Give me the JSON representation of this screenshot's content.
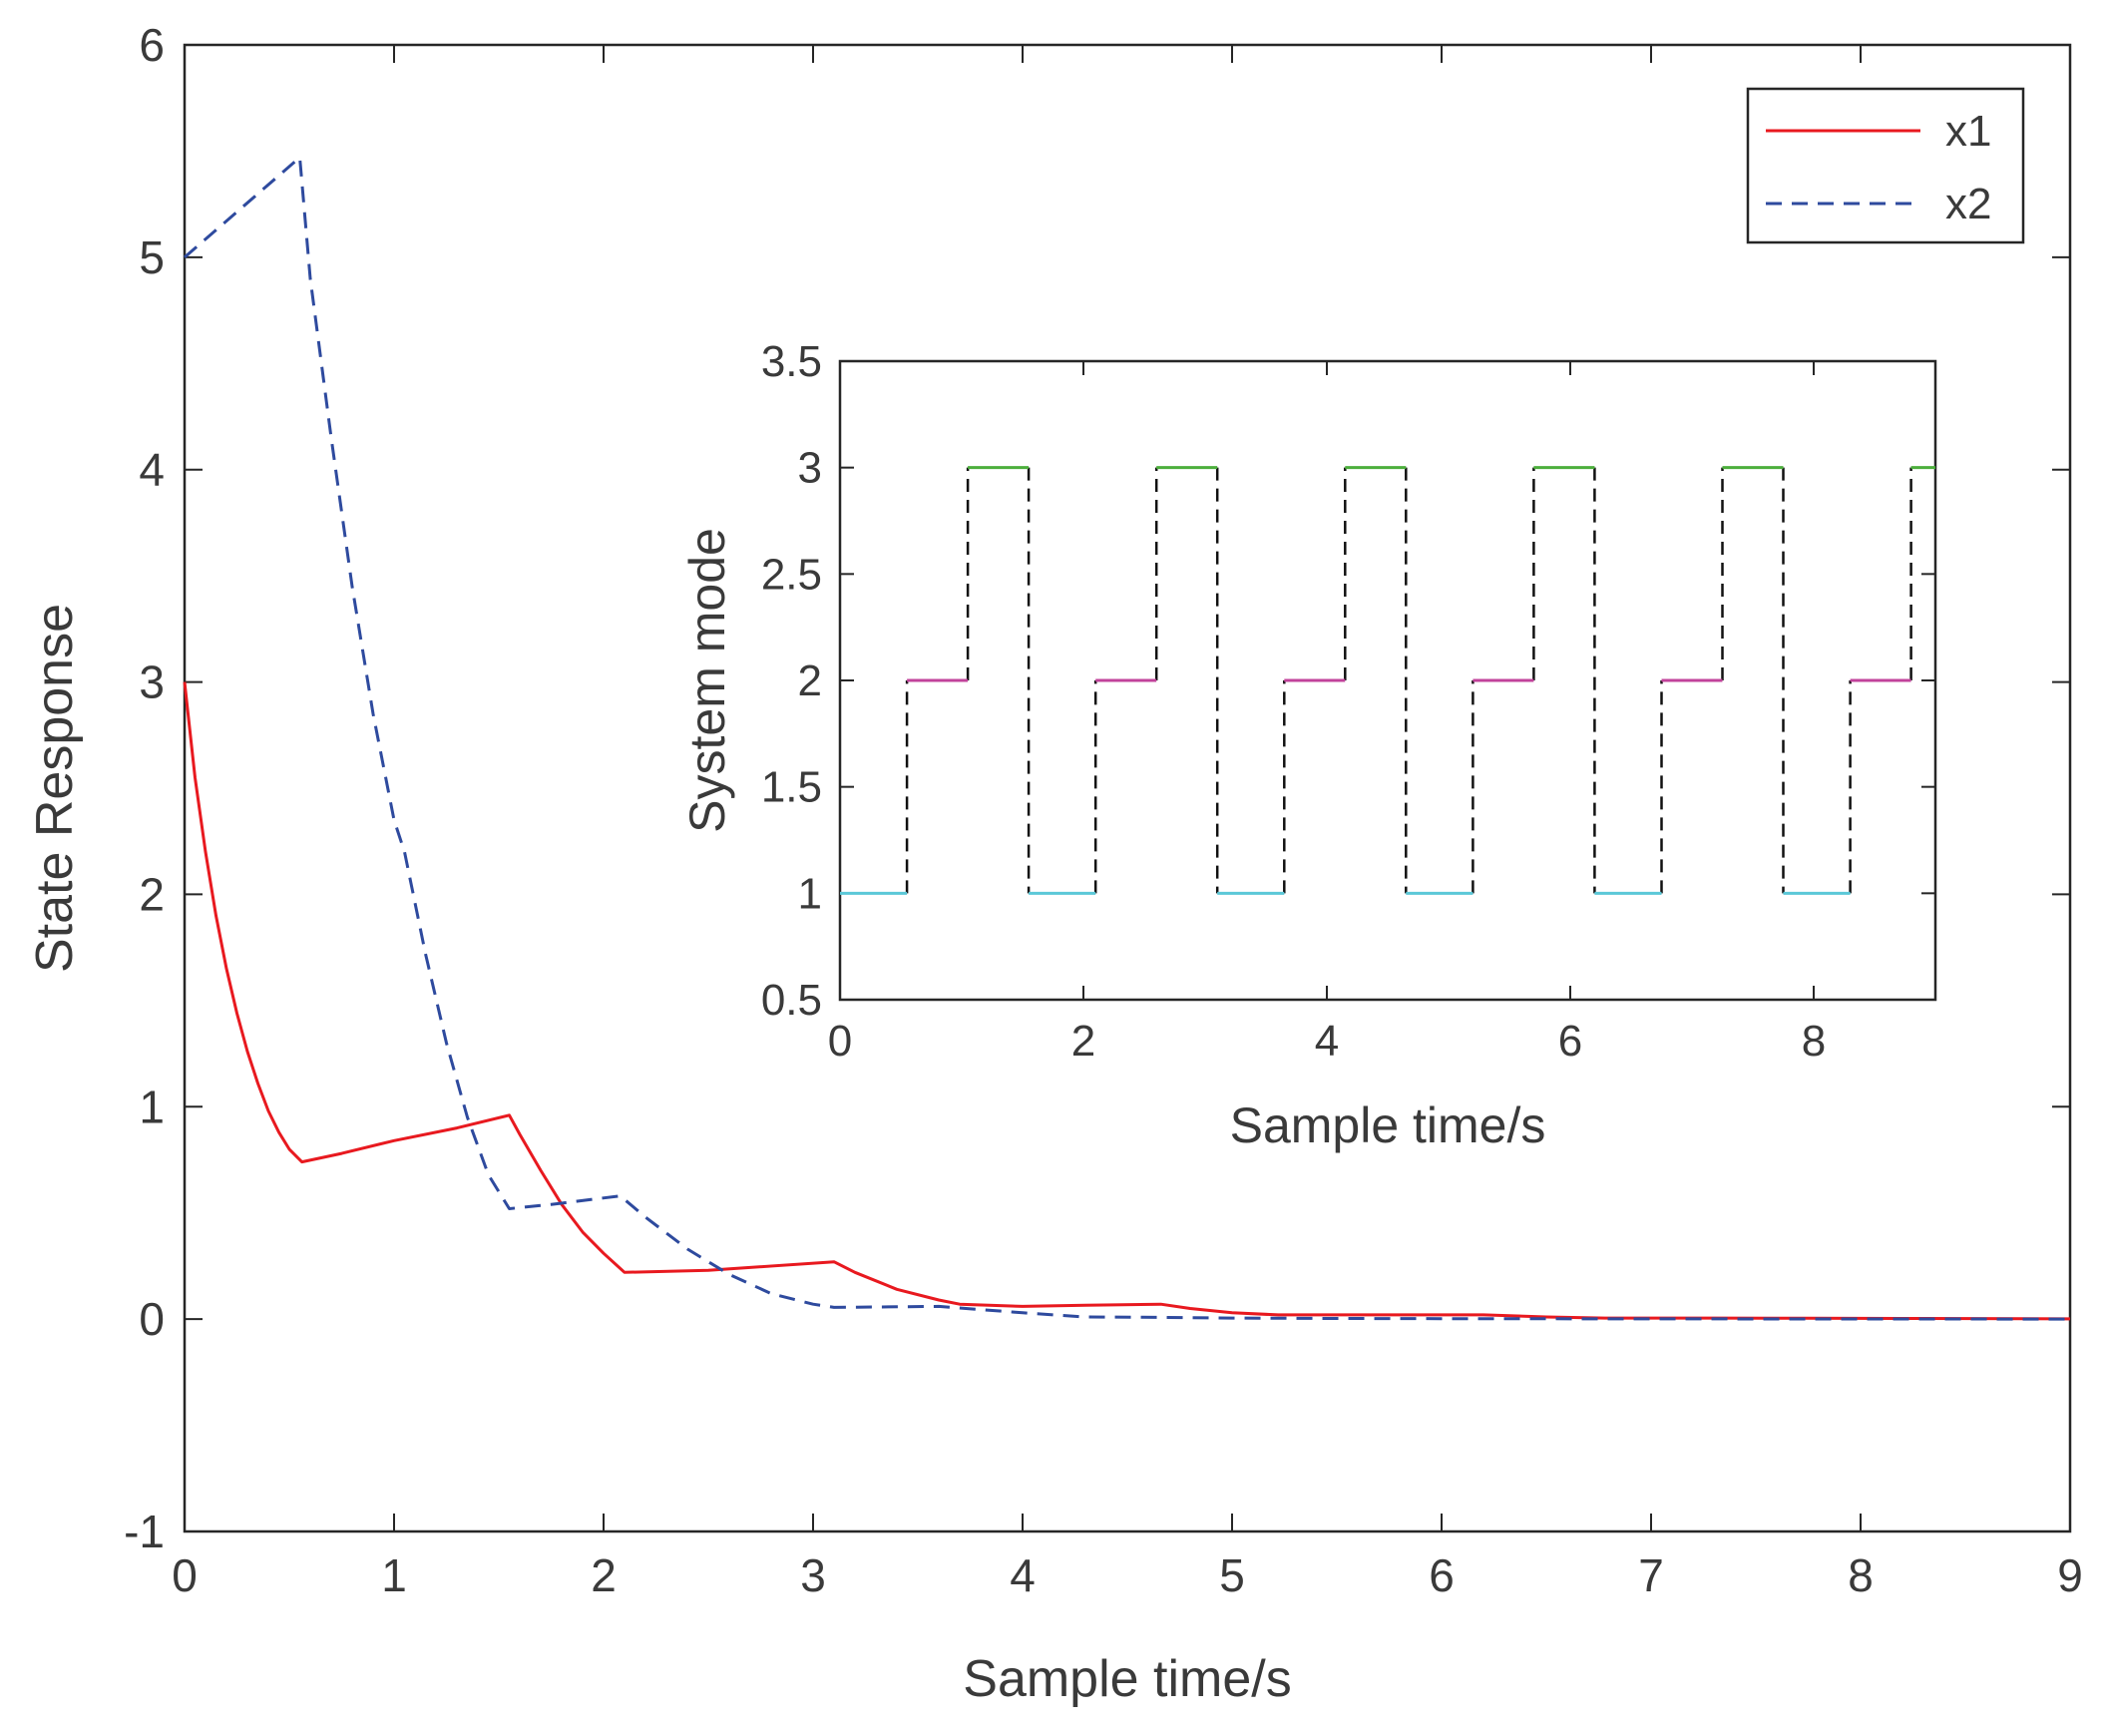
{
  "chart_data": [
    {
      "id": "main",
      "type": "line",
      "title": "",
      "xlabel": "Sample time/s",
      "ylabel": "State Response",
      "xlim": [
        0,
        9
      ],
      "ylim": [
        -1,
        6
      ],
      "xticks": [
        0,
        1,
        2,
        3,
        4,
        5,
        6,
        7,
        8,
        9
      ],
      "yticks": [
        -1,
        0,
        1,
        2,
        3,
        4,
        5,
        6
      ],
      "xtick_labels": [
        "0",
        "1",
        "2",
        "3",
        "4",
        "5",
        "6",
        "7",
        "8",
        "9"
      ],
      "ytick_labels": [
        "-1",
        "0",
        "1",
        "2",
        "3",
        "4",
        "5",
        "6"
      ],
      "grid": false,
      "legend_position": "top-right",
      "series": [
        {
          "name": "x1",
          "color": "#e8191f",
          "style": "solid",
          "x": [
            0,
            0.05,
            0.1,
            0.15,
            0.2,
            0.25,
            0.3,
            0.35,
            0.4,
            0.45,
            0.5,
            0.56,
            0.75,
            1.0,
            1.3,
            1.55,
            1.6,
            1.7,
            1.8,
            1.9,
            2.0,
            2.1,
            2.5,
            3.1,
            3.2,
            3.4,
            3.6,
            3.7,
            4.0,
            4.3,
            4.66,
            4.8,
            5.0,
            5.22,
            5.6,
            6.0,
            6.2,
            6.5,
            6.78,
            7.3,
            7.75,
            8.3,
            9.0
          ],
          "y": [
            3.0,
            2.55,
            2.2,
            1.9,
            1.65,
            1.44,
            1.26,
            1.11,
            0.98,
            0.88,
            0.8,
            0.74,
            0.78,
            0.84,
            0.9,
            0.96,
            0.87,
            0.7,
            0.54,
            0.41,
            0.31,
            0.22,
            0.23,
            0.27,
            0.22,
            0.14,
            0.09,
            0.07,
            0.06,
            0.065,
            0.07,
            0.05,
            0.03,
            0.02,
            0.02,
            0.02,
            0.02,
            0.01,
            0.005,
            0.005,
            0.004,
            0.003,
            0.001
          ]
        },
        {
          "name": "x2",
          "color": "#2e4a9e",
          "style": "dashed",
          "x": [
            0,
            0.55,
            0.6,
            0.7,
            0.8,
            0.9,
            1.0,
            1.05,
            1.15,
            1.25,
            1.35,
            1.45,
            1.55,
            1.75,
            2.08,
            2.2,
            2.4,
            2.6,
            2.8,
            3.0,
            3.1,
            3.6,
            4.0,
            4.3,
            4.66,
            5.0,
            5.5,
            6.0,
            7.0,
            8.0,
            9.0
          ],
          "y": [
            5.0,
            5.47,
            4.9,
            4.15,
            3.45,
            2.85,
            2.35,
            2.2,
            1.72,
            1.3,
            0.95,
            0.68,
            0.52,
            0.54,
            0.58,
            0.48,
            0.33,
            0.21,
            0.12,
            0.07,
            0.055,
            0.06,
            0.03,
            0.01,
            0.008,
            0.005,
            0.003,
            0.002,
            0.001,
            0.0005,
            0.0
          ]
        }
      ]
    },
    {
      "id": "inset",
      "type": "line",
      "title": "",
      "xlabel": "Sample time/s",
      "ylabel": "System mode",
      "xlim": [
        0,
        9
      ],
      "ylim": [
        0.5,
        3.5
      ],
      "xticks": [
        0,
        2,
        4,
        6,
        8
      ],
      "yticks": [
        0.5,
        1,
        1.5,
        2,
        2.5,
        3,
        3.5
      ],
      "xtick_labels": [
        "0",
        "2",
        "4",
        "6",
        "8"
      ],
      "ytick_labels": [
        "0.5",
        "1",
        "1.5",
        "2",
        "2.5",
        "3",
        "3.5"
      ],
      "grid": false,
      "mode_colors": {
        "1": "#5bc8d8",
        "2": "#c2439b",
        "3": "#4caf3c"
      },
      "transition_color": "#111111",
      "segments": [
        {
          "x0": 0.0,
          "x1": 0.55,
          "mode": 1
        },
        {
          "x0": 0.55,
          "x1": 1.05,
          "mode": 2
        },
        {
          "x0": 1.05,
          "x1": 1.55,
          "mode": 3
        },
        {
          "x0": 1.55,
          "x1": 2.1,
          "mode": 1
        },
        {
          "x0": 2.1,
          "x1": 2.6,
          "mode": 2
        },
        {
          "x0": 2.6,
          "x1": 3.1,
          "mode": 3
        },
        {
          "x0": 3.1,
          "x1": 3.65,
          "mode": 1
        },
        {
          "x0": 3.65,
          "x1": 4.15,
          "mode": 2
        },
        {
          "x0": 4.15,
          "x1": 4.65,
          "mode": 3
        },
        {
          "x0": 4.65,
          "x1": 5.2,
          "mode": 1
        },
        {
          "x0": 5.2,
          "x1": 5.7,
          "mode": 2
        },
        {
          "x0": 5.7,
          "x1": 6.2,
          "mode": 3
        },
        {
          "x0": 6.2,
          "x1": 6.75,
          "mode": 1
        },
        {
          "x0": 6.75,
          "x1": 7.25,
          "mode": 2
        },
        {
          "x0": 7.25,
          "x1": 7.75,
          "mode": 3
        },
        {
          "x0": 7.75,
          "x1": 8.3,
          "mode": 1
        },
        {
          "x0": 8.3,
          "x1": 8.8,
          "mode": 2
        },
        {
          "x0": 8.8,
          "x1": 9.0,
          "mode": 3
        }
      ]
    }
  ]
}
